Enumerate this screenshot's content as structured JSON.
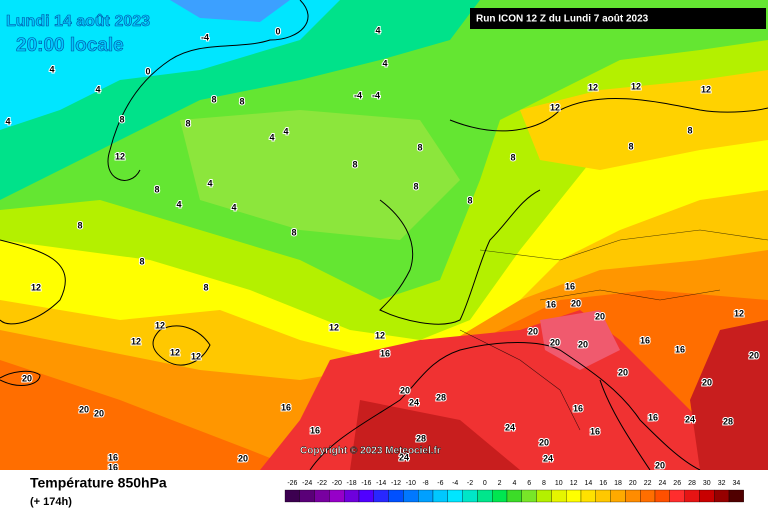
{
  "header": {
    "valid_date": "Lundi 14 août 2023",
    "local_time": "20:00 locale",
    "run_info": "Run ICON 12 Z du Lundi 7 août 2023"
  },
  "map": {
    "copyright": "Copyright © 2023 Meteociel.fr",
    "contour_labels": [
      -4,
      0,
      0,
      4,
      4,
      4,
      4,
      4,
      -4,
      -4,
      8,
      8,
      8,
      8,
      4,
      4,
      12,
      8,
      8,
      4,
      4,
      4,
      8,
      8,
      8,
      8,
      8,
      12,
      12,
      12,
      12,
      8,
      8,
      8,
      8,
      12,
      8,
      12,
      12,
      12,
      12,
      12,
      12,
      16,
      16,
      20,
      16,
      20,
      20,
      20,
      20,
      16,
      16,
      12,
      20,
      20,
      20,
      20,
      20,
      24,
      28,
      16,
      16,
      20,
      16,
      16,
      24,
      20,
      24,
      16,
      16,
      16,
      24,
      20,
      28,
      24,
      28,
      20,
      20
    ]
  },
  "legend": {
    "title": "Température 850hPa",
    "lead_time": "(+ 174h)",
    "scale": [
      -26,
      -24,
      -22,
      -20,
      -18,
      -16,
      -14,
      -12,
      -10,
      -8,
      -6,
      -4,
      -2,
      0,
      2,
      4,
      6,
      8,
      10,
      12,
      14,
      16,
      18,
      20,
      22,
      24,
      26,
      28,
      30,
      32,
      34
    ],
    "colors": [
      "#3c0050",
      "#5a0078",
      "#7800a0",
      "#9600c8",
      "#6e00dc",
      "#5000ff",
      "#2828ff",
      "#0050ff",
      "#0078ff",
      "#00a0ff",
      "#00c8ff",
      "#00e6ff",
      "#00e6c8",
      "#00e68c",
      "#00e650",
      "#3cdc28",
      "#78e628",
      "#b4f000",
      "#e6f500",
      "#ffff00",
      "#ffe100",
      "#ffc800",
      "#ffaa00",
      "#ff8c00",
      "#ff6e00",
      "#ff5000",
      "#ff2d2d",
      "#e61414",
      "#c80000",
      "#960000",
      "#500000"
    ]
  }
}
